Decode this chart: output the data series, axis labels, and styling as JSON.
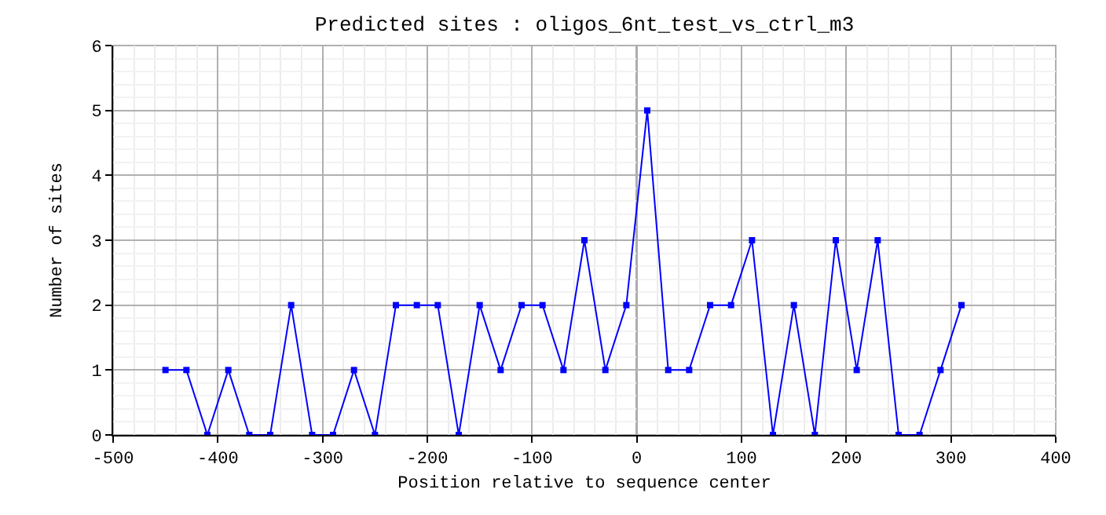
{
  "chart_data": {
    "type": "line",
    "title": "Predicted sites : oligos_6nt_test_vs_ctrl_m3",
    "xlabel": "Position relative to sequence center",
    "ylabel": "Number of sites",
    "x": [
      -450,
      -430,
      -410,
      -390,
      -370,
      -350,
      -330,
      -310,
      -290,
      -270,
      -250,
      -230,
      -210,
      -190,
      -170,
      -150,
      -130,
      -110,
      -90,
      -70,
      -50,
      -30,
      -10,
      10,
      30,
      50,
      70,
      90,
      110,
      130,
      150,
      170,
      190,
      210,
      230,
      250,
      270,
      290,
      310
    ],
    "series": [
      {
        "color": "#0000ff",
        "values": [
          1,
          1,
          0,
          1,
          0,
          0,
          2,
          0,
          0,
          1,
          0,
          2,
          2,
          2,
          0,
          2,
          1,
          2,
          2,
          1,
          3,
          1,
          2,
          5,
          1,
          1,
          2,
          2,
          3,
          0,
          2,
          0,
          3,
          1,
          3,
          0,
          0,
          1,
          2
        ]
      }
    ],
    "xlim": [
      -500,
      400
    ],
    "xticks": [
      -500,
      -400,
      -300,
      -200,
      -100,
      0,
      100,
      200,
      300,
      400
    ],
    "ylim": [
      0,
      6
    ],
    "yticks": [
      0,
      1,
      2,
      3,
      4,
      5,
      6
    ],
    "ref_lines": [
      {
        "axis": "x",
        "value": 0,
        "color": "#000000"
      }
    ],
    "grid": true,
    "marker": "square",
    "line_style": "solid"
  }
}
